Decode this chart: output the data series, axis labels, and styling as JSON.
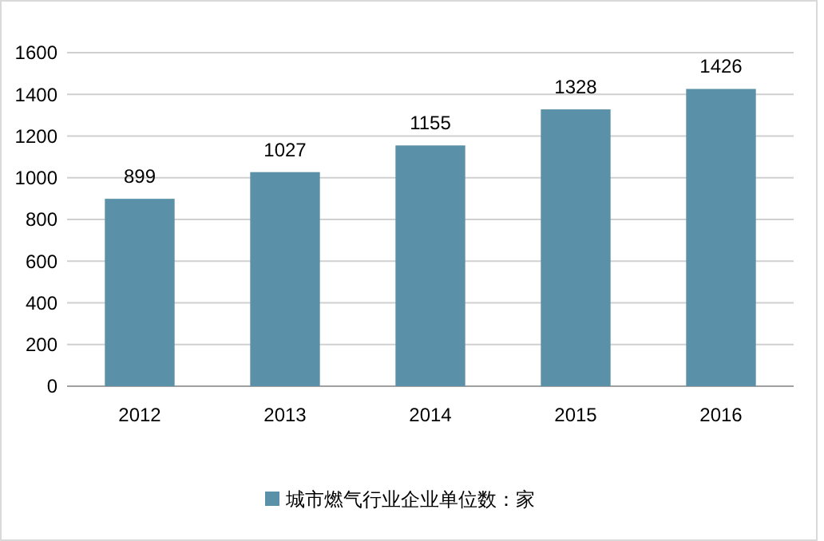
{
  "chart_data": {
    "type": "bar",
    "categories": [
      "2012",
      "2013",
      "2014",
      "2015",
      "2016"
    ],
    "series": [
      {
        "name": "城市燃气行业企业单位数：家",
        "color": "#5b91a8",
        "values": [
          899,
          1027,
          1155,
          1328,
          1426
        ]
      }
    ],
    "ylim": [
      0,
      1600
    ],
    "yticks": [
      0,
      200,
      400,
      600,
      800,
      1000,
      1200,
      1400,
      1600
    ],
    "grid": "y",
    "legend": "bottom",
    "data_labels": true
  }
}
